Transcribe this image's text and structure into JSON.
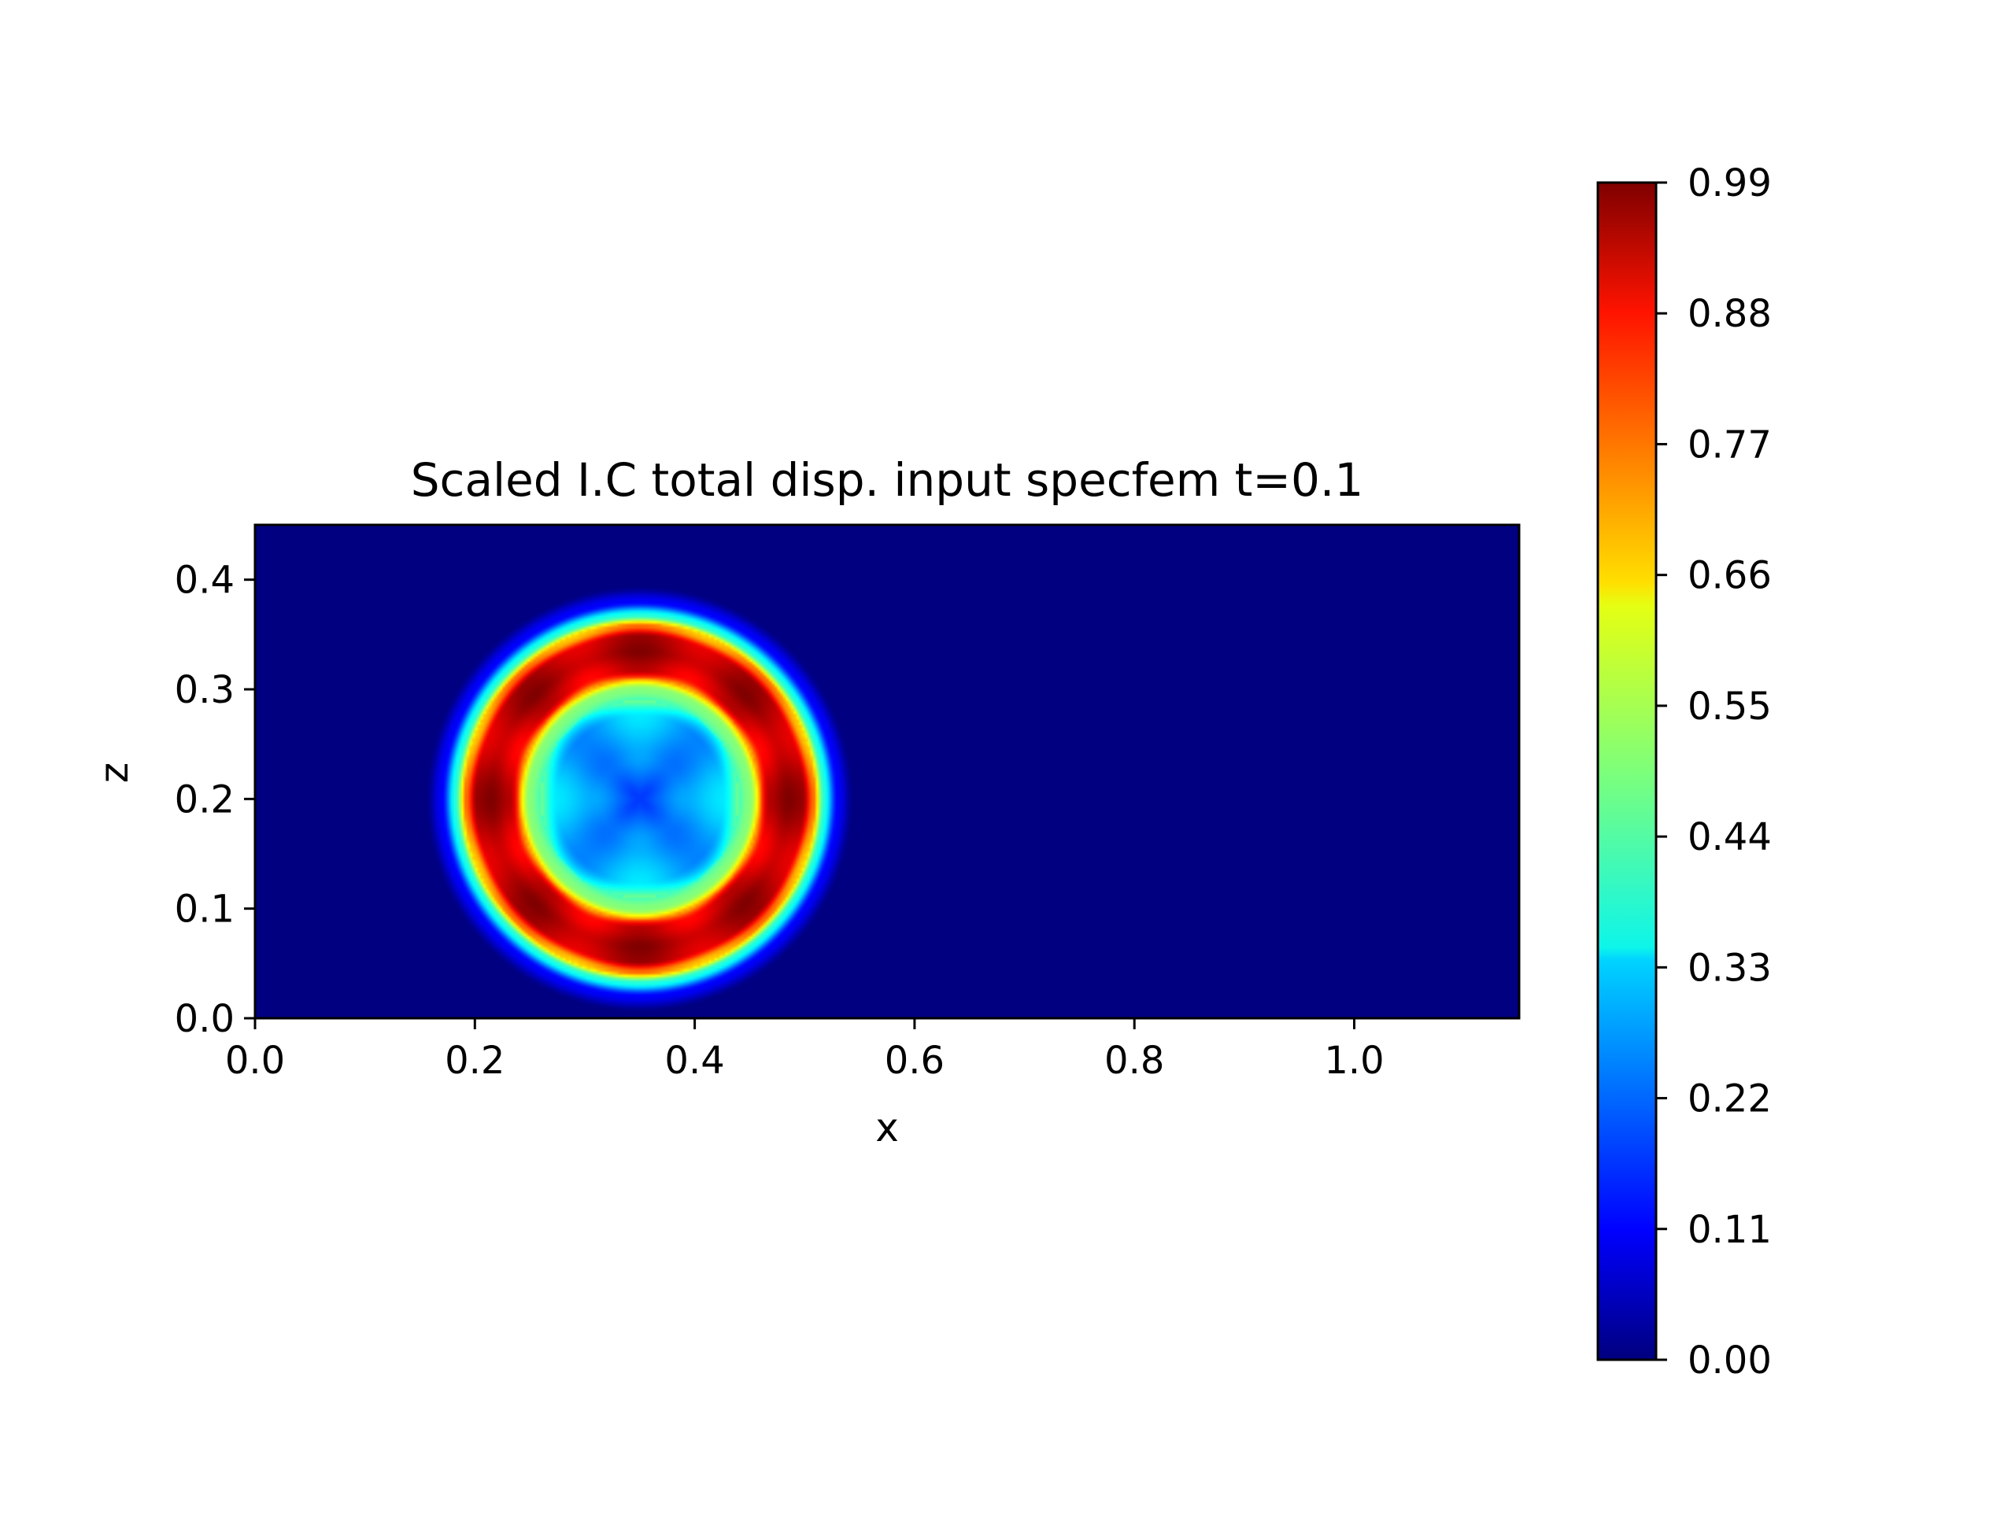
{
  "chart_data": {
    "type": "heatmap",
    "title": "Scaled I.C total disp. input specfem t=0.1",
    "xlabel": "x",
    "ylabel": "z",
    "xlim": [
      0.0,
      1.15
    ],
    "ylim": [
      0.0,
      0.45
    ],
    "x_ticks": [
      0.0,
      0.2,
      0.4,
      0.6,
      0.8,
      1.0
    ],
    "x_tick_labels": [
      "0.0",
      "0.2",
      "0.4",
      "0.6",
      "0.8",
      "1.0"
    ],
    "y_ticks": [
      0.0,
      0.1,
      0.2,
      0.3,
      0.4
    ],
    "y_tick_labels": [
      "0.0",
      "0.1",
      "0.2",
      "0.3",
      "0.4"
    ],
    "colormap": "jet",
    "colorbar": {
      "range": [
        0.0,
        0.99
      ],
      "ticks": [
        0.0,
        0.11,
        0.22,
        0.33,
        0.44,
        0.55,
        0.66,
        0.77,
        0.88,
        0.99
      ],
      "tick_labels": [
        "0.00",
        "0.11",
        "0.22",
        "0.33",
        "0.44",
        "0.55",
        "0.66",
        "0.77",
        "0.88",
        "0.99"
      ]
    },
    "field": {
      "description_values": "radial ring pattern centered at source",
      "center": [
        0.35,
        0.2
      ],
      "radial_profile": [
        {
          "r": 0.0,
          "value": 0.18
        },
        {
          "r": 0.04,
          "value": 0.26
        },
        {
          "r": 0.075,
          "value": 0.3
        },
        {
          "r": 0.1,
          "value": 0.5
        },
        {
          "r": 0.118,
          "value": 0.9
        },
        {
          "r": 0.135,
          "value": 0.95
        },
        {
          "r": 0.148,
          "value": 0.93
        },
        {
          "r": 0.158,
          "value": 0.72
        },
        {
          "r": 0.168,
          "value": 0.4
        },
        {
          "r": 0.18,
          "value": 0.12
        },
        {
          "r": 0.195,
          "value": 0.0
        }
      ],
      "background_value": 0.0
    }
  }
}
